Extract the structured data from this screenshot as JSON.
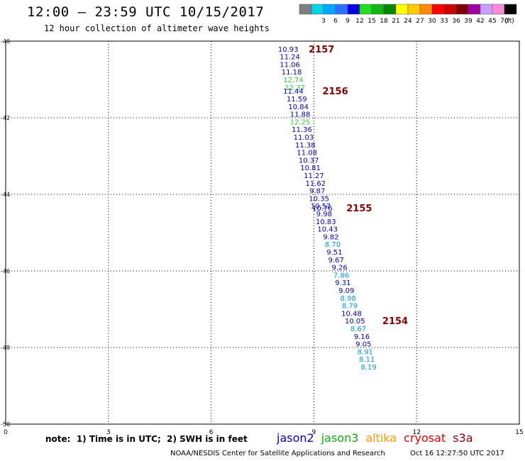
{
  "header": {
    "title": "12:00 – 23:59 UTC 10/15/2017",
    "subtitle": "12 hour collection of altimeter wave heights"
  },
  "colorbar": {
    "unit": "(ft)",
    "bins": [
      {
        "color": "#7f7f7f",
        "label": ""
      },
      {
        "color": "#00d6e6",
        "label": "3"
      },
      {
        "color": "#00a9ff",
        "label": "6"
      },
      {
        "color": "#2f6fff",
        "label": "9"
      },
      {
        "color": "#0000e0",
        "label": "12"
      },
      {
        "color": "#22dd22",
        "label": "15"
      },
      {
        "color": "#11b811",
        "label": "18"
      },
      {
        "color": "#008800",
        "label": "21"
      },
      {
        "color": "#ffff00",
        "label": "24"
      },
      {
        "color": "#ffcc00",
        "label": "27"
      },
      {
        "color": "#ff8c00",
        "label": "30"
      },
      {
        "color": "#ff0000",
        "label": "33"
      },
      {
        "color": "#d00000",
        "label": "36"
      },
      {
        "color": "#800000",
        "label": "39"
      },
      {
        "color": "#a000a0",
        "label": "42"
      },
      {
        "color": "#c8a0ff",
        "label": "45"
      },
      {
        "color": "#ff88dd",
        "label": "70"
      },
      {
        "color": "#000000",
        "label": ""
      }
    ]
  },
  "footer": {
    "note": "note:  1) Time is in UTC;  2) SWH is in feet",
    "credit": "NOAA/NESDIS Center for Satellite Applications and Research",
    "timestamp": "Oct 16 12:27:50 UTC 2017"
  },
  "legend": [
    {
      "name": "jason2",
      "color": "#0000cc"
    },
    {
      "name": "jason3",
      "color": "#11aa11"
    },
    {
      "name": "altika",
      "color": "#ff9900"
    },
    {
      "name": "cryosat",
      "color": "#ee0000"
    },
    {
      "name": "s3a",
      "color": "#880000"
    }
  ],
  "chart_data": {
    "type": "scatter",
    "title": "",
    "xlabel": "",
    "ylabel": "",
    "xlim": [
      0,
      15
    ],
    "ylim": [
      -50,
      -40
    ],
    "grid": true,
    "x_ticks": [
      {
        "value": 0,
        "label": "0"
      },
      {
        "value": 3,
        "label": "3"
      },
      {
        "value": 6,
        "label": "6"
      },
      {
        "value": 9,
        "label": "9"
      },
      {
        "value": 12,
        "label": "12"
      },
      {
        "value": 15,
        "label": "15"
      }
    ],
    "y_ticks": [
      {
        "value": -40,
        "label": "-40"
      },
      {
        "value": -42,
        "label": "-42"
      },
      {
        "value": -44,
        "label": "-44"
      },
      {
        "value": -46,
        "label": "-46"
      },
      {
        "value": -48,
        "label": "-48"
      },
      {
        "value": -50,
        "label": "-50"
      }
    ],
    "points": [
      {
        "lon": 8.25,
        "lat": -40.2,
        "label": "10.93",
        "color": "#0000cc"
      },
      {
        "lon": 8.3,
        "lat": -40.4,
        "label": "11.24",
        "color": "#0000cc"
      },
      {
        "lon": 8.3,
        "lat": -40.6,
        "label": "11.06",
        "color": "#0000cc"
      },
      {
        "lon": 8.35,
        "lat": -40.8,
        "label": "11.18",
        "color": "#0000cc"
      },
      {
        "lon": 8.4,
        "lat": -41.0,
        "label": "12.74",
        "color": "#33cc33"
      },
      {
        "lon": 8.45,
        "lat": -41.2,
        "label": "12.37",
        "color": "#33cc33"
      },
      {
        "lon": 8.4,
        "lat": -41.3,
        "label": "11.44",
        "color": "#0000cc"
      },
      {
        "lon": 8.5,
        "lat": -41.5,
        "label": "11.59",
        "color": "#0000cc"
      },
      {
        "lon": 8.55,
        "lat": -41.7,
        "label": "10.84",
        "color": "#0000cc"
      },
      {
        "lon": 8.6,
        "lat": -41.9,
        "label": "11.88",
        "color": "#0000cc"
      },
      {
        "lon": 8.6,
        "lat": -42.1,
        "label": "12.25",
        "color": "#33cc33"
      },
      {
        "lon": 8.65,
        "lat": -42.3,
        "label": "11.36",
        "color": "#0000cc"
      },
      {
        "lon": 8.7,
        "lat": -42.5,
        "label": "11.03",
        "color": "#0000cc"
      },
      {
        "lon": 8.75,
        "lat": -42.7,
        "label": "11.38",
        "color": "#0000cc"
      },
      {
        "lon": 8.8,
        "lat": -42.9,
        "label": "11.08",
        "color": "#0000cc"
      },
      {
        "lon": 8.85,
        "lat": -43.1,
        "label": "10.37",
        "color": "#0000cc"
      },
      {
        "lon": 8.9,
        "lat": -43.3,
        "label": "10.81",
        "color": "#0000cc"
      },
      {
        "lon": 9.0,
        "lat": -43.5,
        "label": "11.27",
        "color": "#0000cc"
      },
      {
        "lon": 9.05,
        "lat": -43.7,
        "label": "11.62",
        "color": "#0000cc"
      },
      {
        "lon": 9.1,
        "lat": -43.9,
        "label": "9.87",
        "color": "#0000cc"
      },
      {
        "lon": 9.15,
        "lat": -44.1,
        "label": "10.35",
        "color": "#0000cc"
      },
      {
        "lon": 9.2,
        "lat": -44.3,
        "label": "10.57",
        "color": "#0000cc"
      },
      {
        "lon": 9.25,
        "lat": -44.35,
        "label": "10.76",
        "color": "#0000cc"
      },
      {
        "lon": 9.3,
        "lat": -44.5,
        "label": "9.98",
        "color": "#0000cc"
      },
      {
        "lon": 9.35,
        "lat": -44.7,
        "label": "10.83",
        "color": "#0000cc"
      },
      {
        "lon": 9.4,
        "lat": -44.9,
        "label": "10.43",
        "color": "#0000cc"
      },
      {
        "lon": 9.5,
        "lat": -45.1,
        "label": "9.82",
        "color": "#0000cc"
      },
      {
        "lon": 9.55,
        "lat": -45.3,
        "label": "8.70",
        "color": "#0099dd"
      },
      {
        "lon": 9.6,
        "lat": -45.5,
        "label": "9.51",
        "color": "#0000cc"
      },
      {
        "lon": 9.65,
        "lat": -45.7,
        "label": "9.67",
        "color": "#0000cc"
      },
      {
        "lon": 9.75,
        "lat": -45.9,
        "label": "9.26",
        "color": "#0000cc"
      },
      {
        "lon": 9.8,
        "lat": -46.1,
        "label": "7.86",
        "color": "#0099dd"
      },
      {
        "lon": 9.85,
        "lat": -46.3,
        "label": "9.31",
        "color": "#0000cc"
      },
      {
        "lon": 9.95,
        "lat": -46.5,
        "label": "9.09",
        "color": "#0000cc"
      },
      {
        "lon": 10.0,
        "lat": -46.7,
        "label": "8.98",
        "color": "#0099dd"
      },
      {
        "lon": 10.05,
        "lat": -46.9,
        "label": "8.79",
        "color": "#0099dd"
      },
      {
        "lon": 10.1,
        "lat": -47.1,
        "label": "10.48",
        "color": "#0000cc"
      },
      {
        "lon": 10.2,
        "lat": -47.3,
        "label": "10.05",
        "color": "#0000cc"
      },
      {
        "lon": 10.3,
        "lat": -47.5,
        "label": "8.67",
        "color": "#0099dd"
      },
      {
        "lon": 10.4,
        "lat": -47.7,
        "label": "9.16",
        "color": "#0000cc"
      },
      {
        "lon": 10.45,
        "lat": -47.9,
        "label": "9.05",
        "color": "#0000cc"
      },
      {
        "lon": 10.5,
        "lat": -48.1,
        "label": "8.91",
        "color": "#0099dd"
      },
      {
        "lon": 10.55,
        "lat": -48.3,
        "label": "8.11",
        "color": "#0099dd"
      },
      {
        "lon": 10.6,
        "lat": -48.5,
        "label": "8.19",
        "color": "#0099dd"
      }
    ],
    "pass_labels": [
      {
        "lon": 8.85,
        "lat": -40.2,
        "label": "2157",
        "color": "#880000"
      },
      {
        "lon": 9.25,
        "lat": -41.3,
        "label": "2156",
        "color": "#880000"
      },
      {
        "lon": 9.95,
        "lat": -44.35,
        "label": "2155",
        "color": "#880000"
      },
      {
        "lon": 11.0,
        "lat": -47.3,
        "label": "2154",
        "color": "#880000"
      }
    ]
  }
}
